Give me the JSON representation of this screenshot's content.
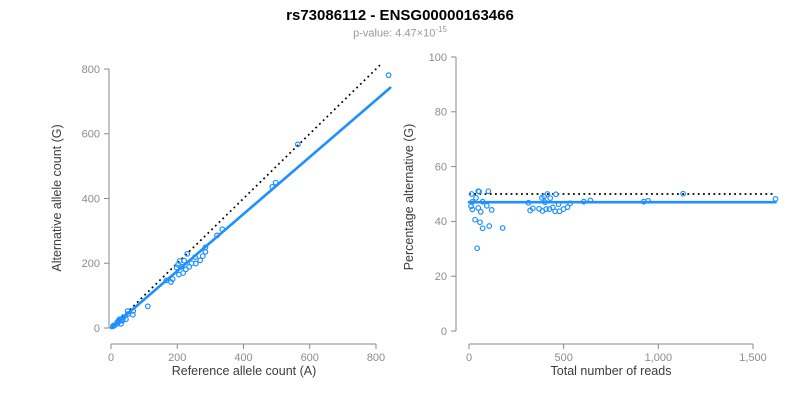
{
  "header": {
    "title": "rs73086112 - ENSG00000163466",
    "subtitle_prefix": "p-value: 4.47×10",
    "subtitle_exponent": "-15"
  },
  "colors": {
    "accent_blue": "#1E90FF",
    "identity_black": "#000000",
    "axis_gray": "#8a8a8a",
    "tick_label_gray": "#8c8c8c",
    "axis_label_gray": "#3c3c3c"
  },
  "chart_data": [
    {
      "type": "scatter",
      "name": "allele-counts-plot",
      "xlabel": "Reference allele count (A)",
      "ylabel": "Alternative allele count (G)",
      "xlim": [
        0,
        845
      ],
      "ylim": [
        0,
        830
      ],
      "grid": false,
      "xticks": [
        0,
        200,
        400,
        600,
        800
      ],
      "xtick_labels": [
        "0",
        "200",
        "400",
        "600",
        "800"
      ],
      "yticks": [
        0,
        200,
        400,
        600,
        800
      ],
      "ytick_labels": [
        "0",
        "200",
        "400",
        "600",
        "800"
      ],
      "points": [
        [
          7,
          7
        ],
        [
          6,
          5
        ],
        [
          10,
          8
        ],
        [
          9,
          8
        ],
        [
          19,
          18
        ],
        [
          26,
          27
        ],
        [
          24,
          25
        ],
        [
          50,
          52
        ],
        [
          19,
          13
        ],
        [
          30,
          13
        ],
        [
          35,
          23
        ],
        [
          45,
          27
        ],
        [
          66,
          41
        ],
        [
          111,
          67
        ],
        [
          27,
          22
        ],
        [
          35,
          27
        ],
        [
          38,
          34
        ],
        [
          51,
          43
        ],
        [
          67,
          53
        ],
        [
          167,
          147
        ],
        [
          181,
          142
        ],
        [
          186,
          151
        ],
        [
          205,
          165
        ],
        [
          198,
          187
        ],
        [
          202,
          195
        ],
        [
          207,
          207
        ],
        [
          221,
          208
        ],
        [
          213,
          189
        ],
        [
          226,
          181
        ],
        [
          218,
          170
        ],
        [
          236,
          189
        ],
        [
          243,
          200
        ],
        [
          256,
          199
        ],
        [
          254,
          219
        ],
        [
          269,
          209
        ],
        [
          277,
          222
        ],
        [
          230,
          229
        ],
        [
          285,
          235
        ],
        [
          285,
          249
        ],
        [
          320,
          286
        ],
        [
          336,
          305
        ],
        [
          487,
          436
        ],
        [
          497,
          449
        ],
        [
          564,
          567
        ],
        [
          838,
          781
        ]
      ],
      "lines": [
        {
          "name": "identity-line",
          "style": "dotted",
          "color": "#000000",
          "x1": 0,
          "y1": 0,
          "x2": 812,
          "y2": 812
        },
        {
          "name": "regression-line",
          "style": "solid",
          "color": "#1E90FF",
          "x1": 0,
          "y1": 0,
          "x2": 843,
          "y2": 742
        }
      ]
    },
    {
      "type": "scatter",
      "name": "percentage-alternative-plot",
      "xlabel": "Total number of reads",
      "ylabel": "Percentage alternative (G)",
      "xlim": [
        0,
        1620
      ],
      "ylim": [
        0,
        100
      ],
      "grid": false,
      "xticks": [
        0,
        500,
        1000,
        1500
      ],
      "xtick_labels": [
        "0",
        "500",
        "1,000",
        "1,500"
      ],
      "yticks": [
        0,
        20,
        40,
        60,
        80,
        100
      ],
      "ytick_labels": [
        "0",
        "20",
        "40",
        "60",
        "80",
        "100"
      ],
      "points": [
        [
          14,
          50.0
        ],
        [
          11,
          45.5
        ],
        [
          18,
          44.4
        ],
        [
          17,
          47.1
        ],
        [
          37,
          48.6
        ],
        [
          53,
          50.9
        ],
        [
          49,
          51.0
        ],
        [
          102,
          51.0
        ],
        [
          32,
          40.6
        ],
        [
          43,
          30.2
        ],
        [
          58,
          39.7
        ],
        [
          72,
          37.5
        ],
        [
          107,
          38.3
        ],
        [
          178,
          37.6
        ],
        [
          49,
          44.9
        ],
        [
          62,
          43.5
        ],
        [
          72,
          47.2
        ],
        [
          94,
          45.7
        ],
        [
          120,
          44.2
        ],
        [
          314,
          46.8
        ],
        [
          323,
          44.0
        ],
        [
          337,
          44.8
        ],
        [
          370,
          44.6
        ],
        [
          385,
          48.6
        ],
        [
          397,
          49.1
        ],
        [
          414,
          50.0
        ],
        [
          429,
          48.5
        ],
        [
          402,
          47.0
        ],
        [
          407,
          44.5
        ],
        [
          388,
          43.8
        ],
        [
          425,
          44.5
        ],
        [
          443,
          45.1
        ],
        [
          455,
          43.7
        ],
        [
          473,
          46.3
        ],
        [
          478,
          43.7
        ],
        [
          499,
          44.5
        ],
        [
          459,
          49.9
        ],
        [
          520,
          45.2
        ],
        [
          534,
          46.6
        ],
        [
          606,
          47.2
        ],
        [
          641,
          47.6
        ],
        [
          923,
          47.2
        ],
        [
          946,
          47.5
        ],
        [
          1131,
          50.1
        ],
        [
          1619,
          48.2
        ]
      ],
      "lines": [
        {
          "name": "expected-percentage-line",
          "style": "dotted",
          "color": "#000000",
          "x1": 0,
          "y1": 50,
          "x2": 1619,
          "y2": 50
        },
        {
          "name": "fitted-percentage-line",
          "style": "solid",
          "color": "#1E90FF",
          "x1": 0,
          "y1": 47,
          "x2": 1619,
          "y2": 47
        }
      ]
    }
  ]
}
